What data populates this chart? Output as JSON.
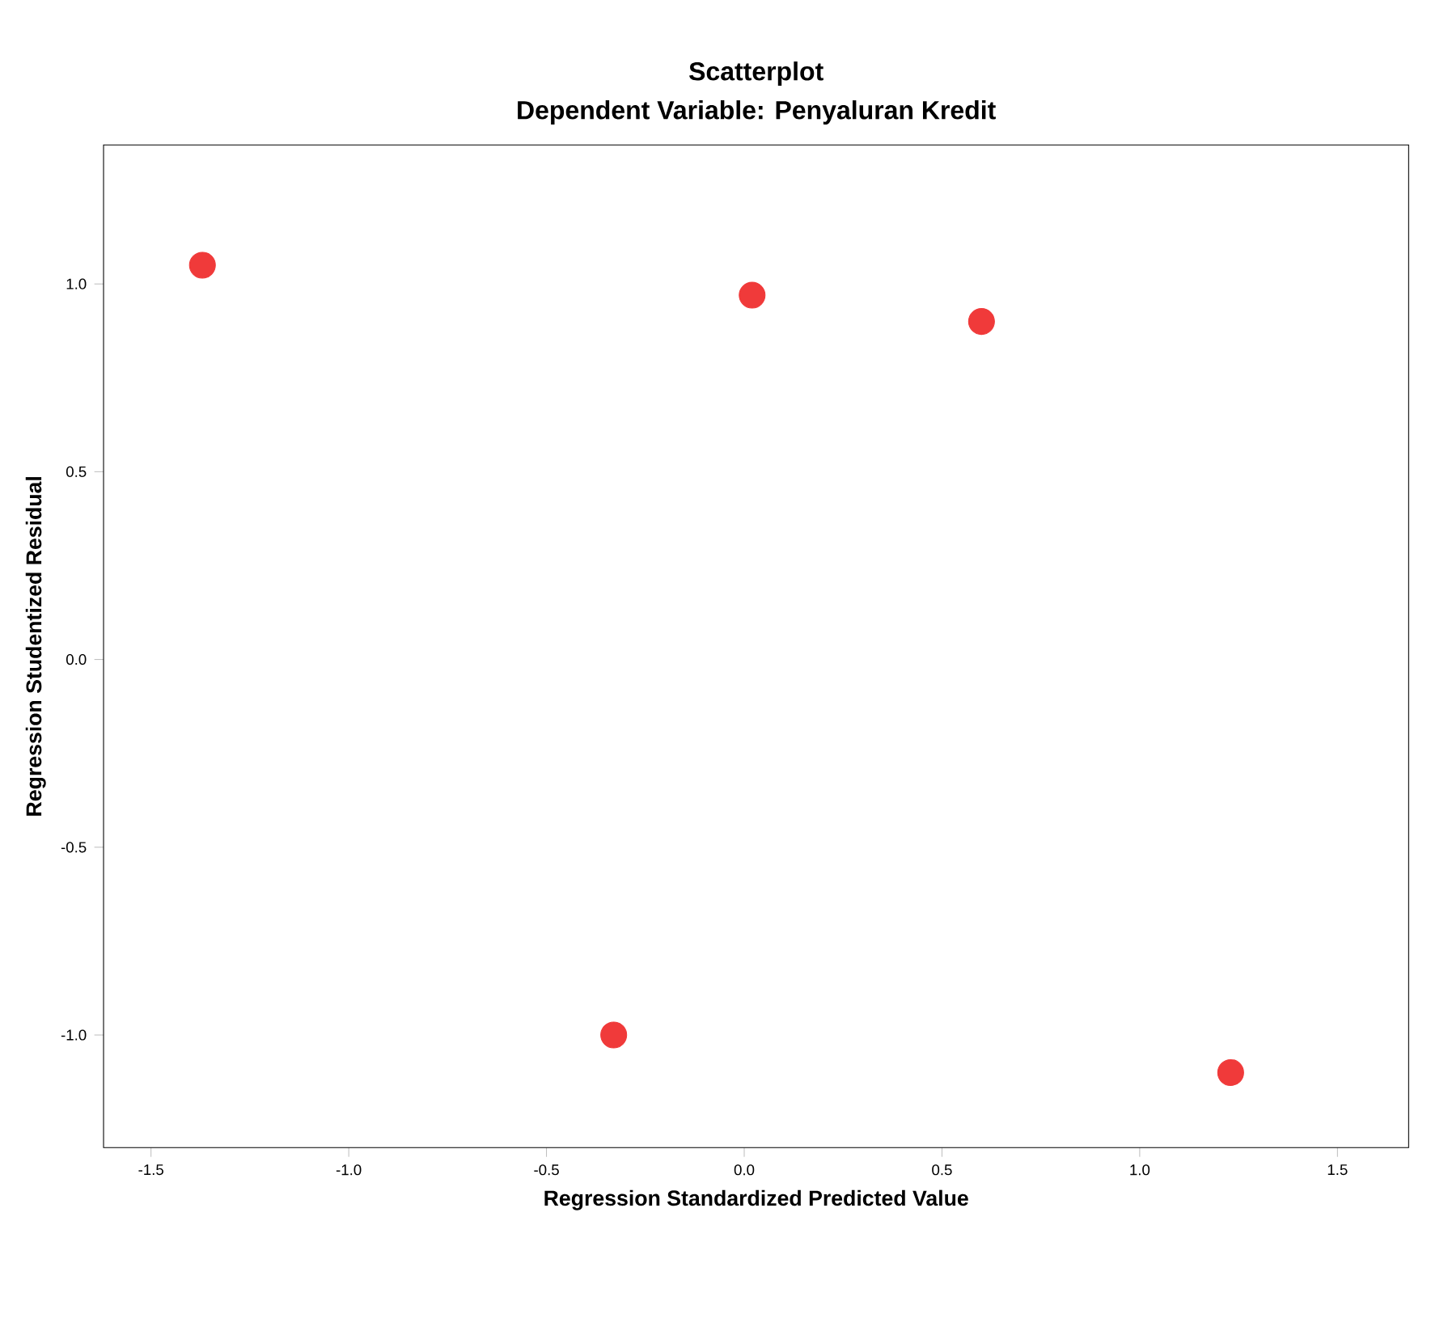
{
  "chart_data": {
    "type": "scatter",
    "title": "Scatterplot",
    "subtitle": "Dependent Variable: Penyaluran Kredit",
    "xlabel": "Regression Standardized Predicted Value",
    "ylabel": "Regression Studentized Residual",
    "x": [
      -1.37,
      0.02,
      0.6,
      -0.33,
      1.23
    ],
    "series": [
      {
        "color": "#f03a3a",
        "values": [
          1.05,
          0.97,
          0.9,
          -1.0,
          -1.1
        ]
      }
    ],
    "xlim": [
      -1.62,
      1.68
    ],
    "ylim": [
      -1.3,
      1.37
    ],
    "xticks": [
      {
        "value": -1.5,
        "label": "-1.5"
      },
      {
        "value": -1.0,
        "label": "-1.0"
      },
      {
        "value": -0.5,
        "label": "-0.5"
      },
      {
        "value": 0.0,
        "label": "0.0"
      },
      {
        "value": 0.5,
        "label": "0.5"
      },
      {
        "value": 1.0,
        "label": "1.0"
      },
      {
        "value": 1.5,
        "label": "1.5"
      }
    ],
    "yticks": [
      {
        "value": -1.0,
        "label": "-1.0"
      },
      {
        "value": -0.5,
        "label": "-0.5"
      },
      {
        "value": 0.0,
        "label": "0.0"
      },
      {
        "value": 0.5,
        "label": "0.5"
      },
      {
        "value": 1.0,
        "label": "1.0"
      }
    ],
    "grid": false
  }
}
